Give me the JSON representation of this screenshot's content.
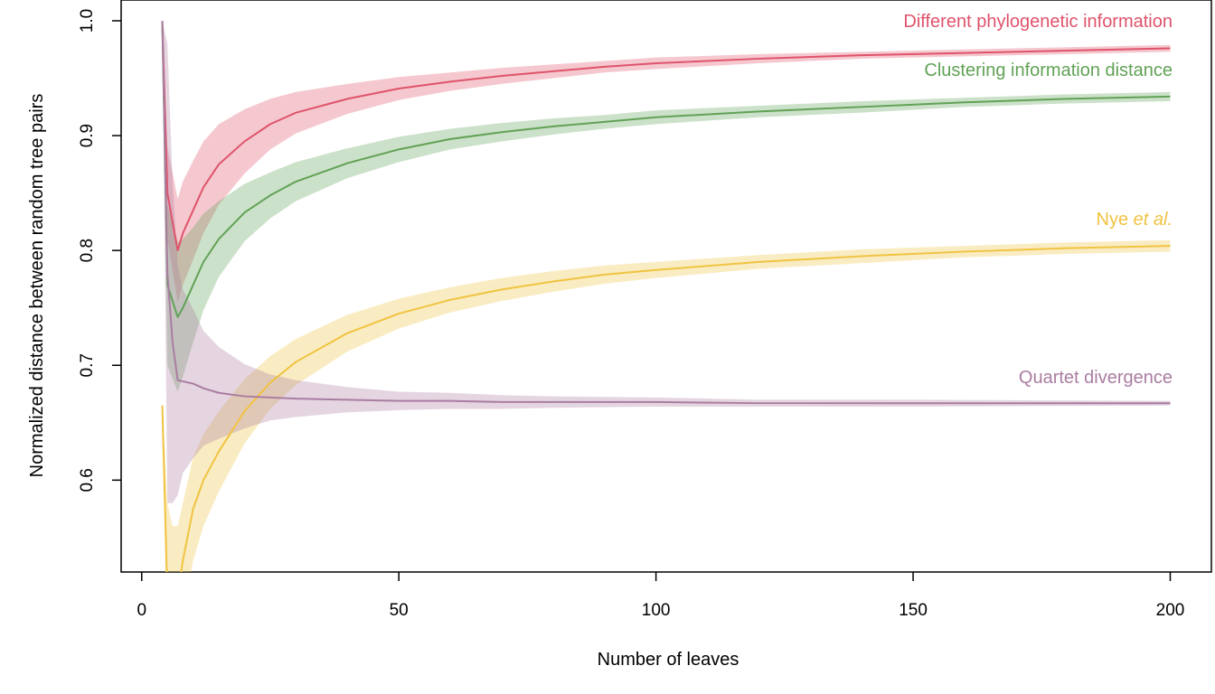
{
  "chart_data": {
    "type": "line",
    "title": "",
    "xlabel": "Number of leaves",
    "ylabel": "Normalized distance between random tree pairs",
    "xlim": [
      -4,
      208
    ],
    "ylim": [
      0.52,
      1.0
    ],
    "x_ticks": [
      0,
      50,
      100,
      150,
      200
    ],
    "y_ticks": [
      0.6,
      0.7,
      0.8,
      0.9,
      1.0
    ],
    "y_tick_labels": [
      "0.6",
      "0.7",
      "0.8",
      "0.9",
      "1.0"
    ],
    "grid": false,
    "legend": "none; series labelled directly at the right end of each line",
    "series": [
      {
        "name": "Different phylogenetic information",
        "label_plain": "Different phylogenetic information",
        "label_italic": "",
        "color": "#DF536B",
        "x": [
          4,
          5,
          7,
          8,
          10,
          12,
          15,
          20,
          25,
          30,
          40,
          50,
          60,
          70,
          80,
          90,
          100,
          120,
          140,
          160,
          180,
          200
        ],
        "y": [
          1.0,
          0.85,
          0.8,
          0.815,
          0.835,
          0.855,
          0.875,
          0.895,
          0.91,
          0.92,
          0.932,
          0.941,
          0.947,
          0.952,
          0.956,
          0.96,
          0.963,
          0.967,
          0.97,
          0.972,
          0.974,
          0.976
        ],
        "band_halfwidth": [
          0.0,
          0.04,
          0.045,
          0.045,
          0.043,
          0.04,
          0.035,
          0.028,
          0.022,
          0.018,
          0.013,
          0.01,
          0.008,
          0.007,
          0.006,
          0.005,
          0.005,
          0.004,
          0.003,
          0.003,
          0.003,
          0.003
        ]
      },
      {
        "name": "Clustering information distance",
        "label_plain": "Clustering information distance",
        "label_italic": "",
        "color": "#61A256",
        "x": [
          4,
          5,
          7,
          8,
          10,
          12,
          15,
          20,
          25,
          30,
          40,
          50,
          60,
          70,
          80,
          90,
          100,
          120,
          140,
          160,
          180,
          200
        ],
        "y": [
          1.0,
          0.77,
          0.742,
          0.75,
          0.77,
          0.79,
          0.81,
          0.833,
          0.848,
          0.86,
          0.876,
          0.888,
          0.897,
          0.903,
          0.908,
          0.912,
          0.916,
          0.921,
          0.925,
          0.929,
          0.932,
          0.934
        ],
        "band_halfwidth": [
          0.0,
          0.07,
          0.065,
          0.06,
          0.05,
          0.042,
          0.033,
          0.025,
          0.02,
          0.017,
          0.013,
          0.011,
          0.009,
          0.008,
          0.007,
          0.006,
          0.006,
          0.005,
          0.005,
          0.004,
          0.004,
          0.004
        ]
      },
      {
        "name": "Nye et al.",
        "label_plain": "Nye ",
        "label_italic": "et al.",
        "color": "#F0C341",
        "x": [
          4,
          5,
          6,
          7,
          8,
          10,
          12,
          15,
          20,
          25,
          30,
          40,
          50,
          60,
          70,
          80,
          90,
          100,
          120,
          140,
          160,
          180,
          200
        ],
        "y": [
          0.665,
          0.5,
          0.49,
          0.5,
          0.53,
          0.575,
          0.6,
          0.625,
          0.66,
          0.685,
          0.703,
          0.728,
          0.745,
          0.757,
          0.766,
          0.773,
          0.779,
          0.783,
          0.79,
          0.795,
          0.799,
          0.802,
          0.804
        ],
        "band_halfwidth": [
          0.0,
          0.08,
          0.07,
          0.06,
          0.05,
          0.045,
          0.04,
          0.035,
          0.028,
          0.023,
          0.02,
          0.016,
          0.013,
          0.011,
          0.01,
          0.009,
          0.008,
          0.007,
          0.006,
          0.006,
          0.005,
          0.005,
          0.005
        ]
      },
      {
        "name": "Quartet divergence",
        "label_plain": "Quartet divergence",
        "label_italic": "",
        "color": "#AA7DA1",
        "x": [
          4,
          5,
          6,
          7,
          8,
          10,
          12,
          15,
          20,
          25,
          30,
          40,
          50,
          60,
          70,
          80,
          100,
          120,
          150,
          200
        ],
        "y": [
          1.0,
          0.78,
          0.72,
          0.687,
          0.686,
          0.684,
          0.68,
          0.676,
          0.673,
          0.672,
          0.671,
          0.67,
          0.669,
          0.669,
          0.668,
          0.668,
          0.668,
          0.667,
          0.667,
          0.667
        ],
        "band_halfwidth": [
          0.0,
          0.2,
          0.14,
          0.1,
          0.08,
          0.065,
          0.05,
          0.04,
          0.028,
          0.02,
          0.016,
          0.011,
          0.008,
          0.007,
          0.006,
          0.005,
          0.004,
          0.003,
          0.003,
          0.002
        ]
      }
    ]
  }
}
